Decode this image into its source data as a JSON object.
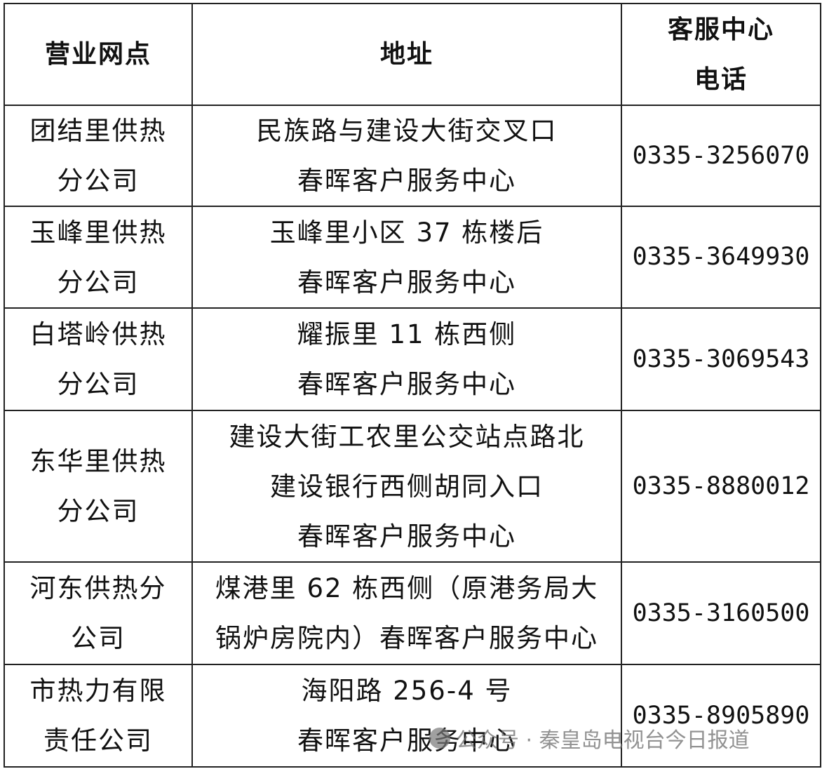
{
  "table": {
    "headers": [
      [
        "营业网点"
      ],
      [
        "地址"
      ],
      [
        "客服中心",
        "电话"
      ]
    ],
    "rows": [
      {
        "branch": [
          "团结里供热",
          "分公司"
        ],
        "address": [
          "民族路与建设大街交叉口",
          "春晖客户服务中心"
        ],
        "phone": "0335-3256070"
      },
      {
        "branch": [
          "玉峰里供热",
          "分公司"
        ],
        "address": [
          "玉峰里小区 37 栋楼后",
          "春晖客户服务中心"
        ],
        "phone": "0335-3649930"
      },
      {
        "branch": [
          "白塔岭供热",
          "分公司"
        ],
        "address": [
          "耀振里 11 栋西侧",
          "春晖客户服务中心"
        ],
        "phone": "0335-3069543"
      },
      {
        "branch": [
          "东华里供热",
          "分公司"
        ],
        "address": [
          "建设大街工农里公交站点路北",
          "建设银行西侧胡同入口",
          "春晖客户服务中心"
        ],
        "phone": "0335-8880012"
      },
      {
        "branch": [
          "河东供热分",
          "公司"
        ],
        "address": [
          "煤港里 62 栋西侧（原港务局大",
          "锅炉房院内）春晖客户服务中心"
        ],
        "phone": "0335-3160500"
      },
      {
        "branch": [
          "市热力有限",
          "责任公司"
        ],
        "address": [
          "海阳路 256-4 号",
          "春晖客户服务中心"
        ],
        "phone": "0335-8905890"
      }
    ]
  },
  "watermark": {
    "text": "公众号 · 秦皇岛电视台今日报道",
    "icon": "wechat-icon"
  }
}
